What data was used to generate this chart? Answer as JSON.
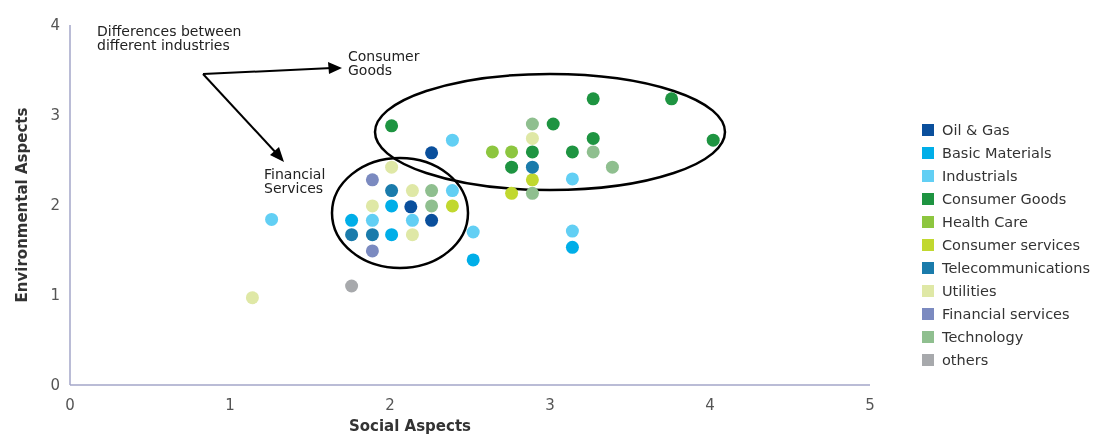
{
  "chart_data": {
    "type": "scatter",
    "xlabel": "Social Aspects",
    "ylabel": "Environmental Aspects",
    "xlim": [
      0,
      5
    ],
    "xticks": [
      0,
      1,
      2,
      3,
      4,
      5
    ],
    "ylim": [
      0,
      4
    ],
    "yticks": [
      0,
      1,
      2,
      3,
      4
    ],
    "grid": false,
    "legend": "right",
    "marker": "circle",
    "annotations": [
      "Differences between different industries",
      "Consumer Goods",
      "Financial Services"
    ],
    "series": [
      {
        "name": "Oil & Gas",
        "color": "#0a4f9c",
        "x": [
          2.26,
          2.13,
          2.26
        ],
        "values": [
          2.58,
          1.98,
          1.83
        ]
      },
      {
        "name": "Basic Materials",
        "color": "#00aee8",
        "x": [
          1.76,
          2.01,
          2.01,
          2.52,
          3.14
        ],
        "values": [
          1.83,
          1.99,
          1.67,
          1.39,
          1.53
        ]
      },
      {
        "name": "Industrials",
        "color": "#62cff4",
        "x": [
          1.26,
          2.39,
          1.89,
          2.14,
          2.39,
          2.52,
          3.14,
          3.14
        ],
        "values": [
          1.84,
          2.72,
          1.83,
          1.83,
          2.16,
          1.7,
          2.29,
          1.71
        ]
      },
      {
        "name": "Consumer Goods",
        "color": "#1e9441",
        "x": [
          2.01,
          3.27,
          3.76,
          3.02,
          3.27,
          4.02,
          2.89,
          3.14,
          2.76
        ],
        "values": [
          2.88,
          3.18,
          3.18,
          2.9,
          2.74,
          2.72,
          2.59,
          2.59,
          2.42
        ]
      },
      {
        "name": "Health Care",
        "color": "#8dc63f",
        "x": [
          2.64,
          2.76
        ],
        "values": [
          2.59,
          2.59
        ]
      },
      {
        "name": "Consumer services",
        "color": "#c1d82f",
        "x": [
          2.89,
          2.76,
          2.39
        ],
        "values": [
          2.28,
          2.13,
          1.99
        ]
      },
      {
        "name": "Telecommunications",
        "color": "#1a7bab",
        "x": [
          2.89,
          2.01,
          1.76,
          1.89
        ],
        "values": [
          2.42,
          2.16,
          1.67,
          1.67
        ]
      },
      {
        "name": "Utilities",
        "color": "#dfe8a6",
        "x": [
          2.01,
          2.14,
          1.89,
          2.14,
          1.14,
          2.89
        ],
        "values": [
          2.42,
          2.16,
          1.99,
          1.67,
          0.97,
          2.74
        ]
      },
      {
        "name": "Financial services",
        "color": "#7b8ac0",
        "x": [
          1.89,
          1.89
        ],
        "values": [
          2.28,
          1.49
        ]
      },
      {
        "name": "Technology",
        "color": "#8fbf8f",
        "x": [
          2.26,
          2.26,
          2.89,
          2.89,
          3.27,
          3.39
        ],
        "values": [
          2.16,
          1.99,
          2.9,
          2.13,
          2.59,
          2.42
        ]
      },
      {
        "name": "others",
        "color": "#a7a9ac",
        "x": [
          1.76
        ],
        "values": [
          1.1
        ]
      }
    ]
  }
}
